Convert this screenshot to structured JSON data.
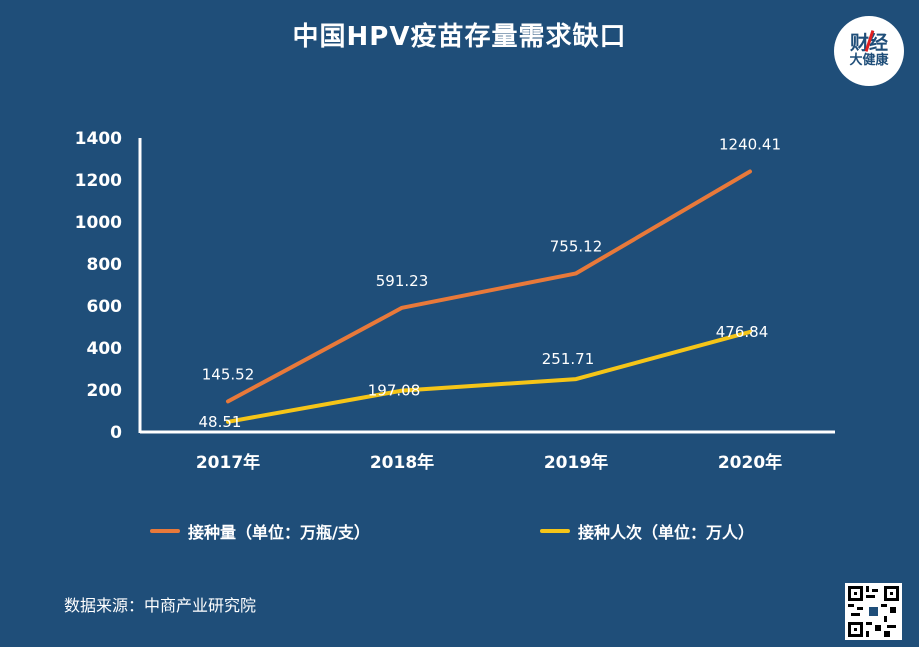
{
  "title": "中国HPV疫苗存量需求缺口",
  "logo": {
    "line1": "财经",
    "line2": "大健康"
  },
  "source": "数据来源：中商产业研究院",
  "colors": {
    "background": "#1f4e79",
    "series_orange": "#e8793a",
    "series_yellow": "#f5c518",
    "axis": "#ffffff"
  },
  "chart_data": {
    "type": "line",
    "title": "中国HPV疫苗存量需求缺口",
    "categories": [
      "2017年",
      "2018年",
      "2019年",
      "2020年"
    ],
    "ylim": [
      0,
      1400
    ],
    "yticks": [
      0,
      200,
      400,
      600,
      800,
      1000,
      1200,
      1400
    ],
    "grid": false,
    "legend_position": "bottom",
    "series": [
      {
        "name": "接种量（单位：万瓶/支）",
        "color": "#e8793a",
        "values": [
          145.52,
          591.23,
          755.12,
          1240.41
        ],
        "labels": [
          "145.52",
          "591.23",
          "755.12",
          "1240.41"
        ]
      },
      {
        "name": "接种人次（单位：万人）",
        "color": "#f5c518",
        "values": [
          48.51,
          197.08,
          251.71,
          476.84
        ],
        "labels": [
          "48.51",
          "197.08",
          "251.71",
          "476.84"
        ]
      }
    ]
  }
}
